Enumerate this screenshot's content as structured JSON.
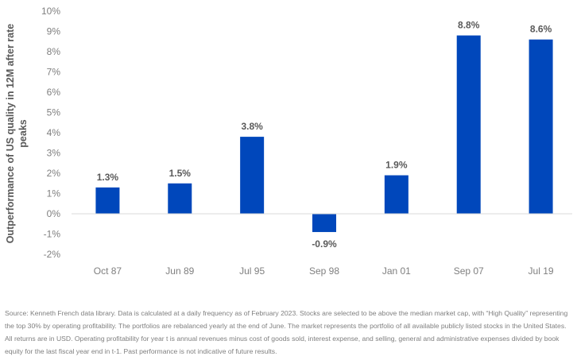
{
  "chart_data": {
    "type": "bar",
    "categories": [
      "Oct 87",
      "Jun 89",
      "Jul 95",
      "Sep 98",
      "Jan 01",
      "Sep 07",
      "Jul 19"
    ],
    "values": [
      1.3,
      1.5,
      3.8,
      -0.9,
      1.9,
      8.8,
      8.6
    ],
    "data_labels": [
      "1.3%",
      "1.5%",
      "3.8%",
      "-0.9%",
      "1.9%",
      "8.8%",
      "8.6%"
    ],
    "ylabel_lines": [
      "Outperformance of US quality in 12M after rate",
      "peaks"
    ],
    "ylim": [
      -2,
      10
    ],
    "yticks": [
      -2,
      -1,
      0,
      1,
      2,
      3,
      4,
      5,
      6,
      7,
      8,
      9,
      10
    ],
    "ytick_labels": [
      "-2%",
      "-1%",
      "0%",
      "1%",
      "2%",
      "3%",
      "4%",
      "5%",
      "6%",
      "7%",
      "8%",
      "9%",
      "10%"
    ],
    "grid": false,
    "bar_color": "#0047BB",
    "zero_line_color": "#d9d9d9"
  },
  "footnote": "Source: Kenneth French data library. Data is calculated at a daily frequency as of February 2023. Stocks are selected to be above the median market cap, with “High Quality” representing the top 30% by operating profitability. The portfolios are rebalanced yearly at the end of June. The market represents the portfolio of all available publicly listed stocks in the United States. All returns are in USD. Operating profitability for year t  is annual revenues minus cost of goods sold, interest expense, and selling, general and administrative expenses divided by book equity for the last fiscal year end in t-1. Past performance is not indicative of future results."
}
